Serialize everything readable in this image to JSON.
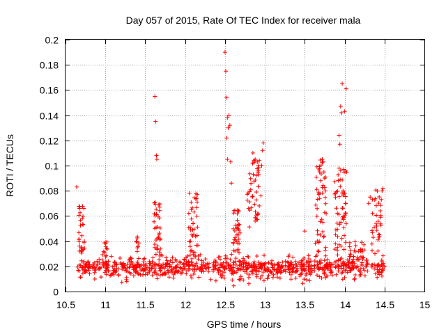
{
  "chart_data": {
    "type": "scatter",
    "title": "Day 057 of 2015, Rate Of TEC Index for receiver mala",
    "xlabel": "GPS time / hours",
    "ylabel": "ROTI / TECUs",
    "xlim": [
      10.5,
      15
    ],
    "ylim": [
      0,
      0.2
    ],
    "xticks": [
      "10.5",
      "11",
      "11.5",
      "12",
      "12.5",
      "13",
      "13.5",
      "14",
      "14.5",
      "15"
    ],
    "yticks": [
      "0",
      "0.02",
      "0.04",
      "0.06",
      "0.08",
      "0.1",
      "0.12",
      "0.14",
      "0.16",
      "0.18",
      "0.2"
    ],
    "grid": true,
    "marker": "+",
    "color": "#ff0000",
    "baseline": {
      "x_range": [
        10.65,
        14.5
      ],
      "y_range": [
        0.004,
        0.03
      ],
      "count": 900
    },
    "bursts": [
      {
        "x_center": 10.7,
        "x_width": 0.08,
        "y_range": [
          0.03,
          0.068
        ],
        "count": 30
      },
      {
        "x_center": 11.0,
        "x_width": 0.05,
        "y_range": [
          0.025,
          0.04
        ],
        "count": 10
      },
      {
        "x_center": 11.4,
        "x_width": 0.05,
        "y_range": [
          0.025,
          0.045
        ],
        "count": 10
      },
      {
        "x_center": 11.65,
        "x_width": 0.08,
        "y_range": [
          0.03,
          0.075
        ],
        "count": 35
      },
      {
        "x_center": 12.1,
        "x_width": 0.12,
        "y_range": [
          0.025,
          0.08
        ],
        "count": 40
      },
      {
        "x_center": 12.65,
        "x_width": 0.1,
        "y_range": [
          0.03,
          0.065
        ],
        "count": 35
      },
      {
        "x_center": 12.85,
        "x_width": 0.15,
        "y_range": [
          0.05,
          0.105
        ],
        "count": 45
      },
      {
        "x_center": 13.7,
        "x_width": 0.15,
        "y_range": [
          0.03,
          0.105
        ],
        "count": 45
      },
      {
        "x_center": 13.95,
        "x_width": 0.15,
        "y_range": [
          0.03,
          0.1
        ],
        "count": 55
      },
      {
        "x_center": 14.15,
        "x_width": 0.2,
        "y_range": [
          0.025,
          0.04
        ],
        "count": 25
      },
      {
        "x_center": 14.4,
        "x_width": 0.12,
        "y_range": [
          0.03,
          0.082
        ],
        "count": 30
      }
    ],
    "points": [
      [
        10.64,
        0.083
      ],
      [
        11.62,
        0.155
      ],
      [
        11.63,
        0.135
      ],
      [
        11.64,
        0.108
      ],
      [
        11.645,
        0.105
      ],
      [
        12.5,
        0.19
      ],
      [
        12.51,
        0.175
      ],
      [
        12.52,
        0.154
      ],
      [
        12.53,
        0.138
      ],
      [
        12.55,
        0.14
      ],
      [
        12.54,
        0.13
      ],
      [
        12.56,
        0.132
      ],
      [
        12.52,
        0.122
      ],
      [
        12.53,
        0.105
      ],
      [
        12.57,
        0.103
      ],
      [
        12.58,
        0.086
      ],
      [
        12.98,
        0.118
      ],
      [
        12.97,
        0.112
      ],
      [
        12.93,
        0.104
      ],
      [
        12.96,
        0.1
      ],
      [
        12.85,
        0.11
      ],
      [
        12.87,
        0.104
      ],
      [
        12.95,
        0.076
      ],
      [
        12.93,
        0.068
      ],
      [
        13.93,
        0.124
      ],
      [
        13.94,
        0.117
      ],
      [
        13.95,
        0.147
      ],
      [
        13.96,
        0.142
      ],
      [
        13.97,
        0.165
      ],
      [
        14.02,
        0.161
      ],
      [
        14.0,
        0.143
      ],
      [
        13.93,
        0.098
      ],
      [
        13.95,
        0.096
      ],
      [
        13.72,
        0.105
      ],
      [
        13.73,
        0.103
      ],
      [
        13.74,
        0.095
      ],
      [
        13.75,
        0.09
      ],
      [
        13.7,
        0.088
      ],
      [
        13.76,
        0.08
      ],
      [
        14.0,
        0.078
      ],
      [
        14.01,
        0.07
      ],
      [
        13.98,
        0.08
      ],
      [
        13.5,
        0.048
      ],
      [
        14.47,
        0.08
      ],
      [
        14.48,
        0.082
      ],
      [
        14.46,
        0.073
      ],
      [
        14.45,
        0.059
      ],
      [
        14.42,
        0.041
      ],
      [
        14.32,
        0.075
      ],
      [
        14.3,
        0.07
      ],
      [
        14.35,
        0.062
      ]
    ]
  }
}
